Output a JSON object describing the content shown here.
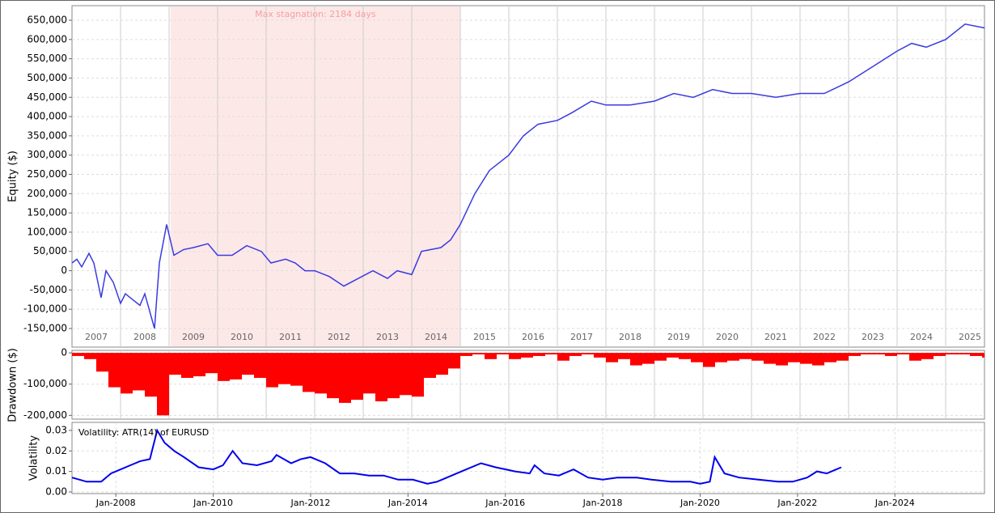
{
  "chart_data": [
    {
      "type": "line",
      "ylabel": "Equity ($)",
      "color": "#3a3ae0",
      "xlim": [
        2007,
        2025.8
      ],
      "ylim": [
        -198300,
        687800
      ],
      "year_labels": [
        2007,
        2008,
        2009,
        2010,
        2011,
        2012,
        2013,
        2014,
        2015,
        2016,
        2017,
        2018,
        2019,
        2020,
        2021,
        2022,
        2023,
        2024,
        2025
      ],
      "yticks": [
        {
          "value": 650000,
          "label": "650,000"
        },
        {
          "value": 600000,
          "label": "600,000"
        },
        {
          "value": 550000,
          "label": "550,000"
        },
        {
          "value": 500000,
          "label": "500,000"
        },
        {
          "value": 450000,
          "label": "450,000"
        },
        {
          "value": 400000,
          "label": "400,000"
        },
        {
          "value": 350000,
          "label": "350,000"
        },
        {
          "value": 300000,
          "label": "300,000"
        },
        {
          "value": 250000,
          "label": "250,000"
        },
        {
          "value": 200000,
          "label": "200,000"
        },
        {
          "value": 150000,
          "label": "150,000"
        },
        {
          "value": 100000,
          "label": "100,000"
        },
        {
          "value": 50000,
          "label": "50,000"
        },
        0,
        {
          "value": -50000,
          "label": "-50,000"
        },
        {
          "value": -100000,
          "label": "-100,000"
        },
        {
          "value": -150000,
          "label": "-150,000"
        }
      ],
      "grid": true,
      "stagnation": {
        "start": 2009.03,
        "end": 2015.0,
        "label": "Max stagnation: 2184 days",
        "color": "#fde8e8"
      },
      "x": [
        2007.0,
        2007.1,
        2007.2,
        2007.35,
        2007.45,
        2007.6,
        2007.7,
        2007.85,
        2008.0,
        2008.1,
        2008.25,
        2008.4,
        2008.5,
        2008.7,
        2008.8,
        2008.95,
        2009.1,
        2009.3,
        2009.5,
        2009.8,
        2010.0,
        2010.3,
        2010.6,
        2010.9,
        2011.1,
        2011.4,
        2011.6,
        2011.8,
        2012.0,
        2012.3,
        2012.6,
        2012.9,
        2013.2,
        2013.5,
        2013.7,
        2014.0,
        2014.2,
        2014.6,
        2014.8,
        2015.0,
        2015.3,
        2015.6,
        2016.0,
        2016.3,
        2016.6,
        2017.0,
        2017.3,
        2017.7,
        2018.0,
        2018.5,
        2019.0,
        2019.4,
        2019.8,
        2020.2,
        2020.6,
        2021.0,
        2021.5,
        2022.0,
        2022.5,
        2023.0,
        2023.5,
        2024.0,
        2024.3,
        2024.6,
        2025.0,
        2025.4,
        2025.8
      ],
      "values": [
        20000,
        30000,
        10000,
        45000,
        20000,
        -70000,
        0,
        -30000,
        -85000,
        -60000,
        -75000,
        -90000,
        -60000,
        -150000,
        20000,
        120000,
        40000,
        55000,
        60000,
        70000,
        40000,
        40000,
        65000,
        50000,
        20000,
        30000,
        20000,
        0,
        0,
        -15000,
        -40000,
        -20000,
        0,
        -20000,
        0,
        -10000,
        50000,
        60000,
        80000,
        120000,
        200000,
        260000,
        300000,
        350000,
        380000,
        390000,
        410000,
        440000,
        430000,
        430000,
        440000,
        460000,
        450000,
        470000,
        460000,
        460000,
        450000,
        460000,
        460000,
        490000,
        530000,
        570000,
        590000,
        580000,
        600000,
        640000,
        630000
      ]
    },
    {
      "type": "bar",
      "ylabel": "Drawdown ($)",
      "color": "#ff0000",
      "xlim": [
        2007,
        2025.8
      ],
      "ylim": [
        -212000,
        8000
      ],
      "yticks": [
        0,
        {
          "value": -100000,
          "label": "-100,000"
        },
        {
          "value": -200000,
          "label": "-200,000"
        }
      ],
      "grid": true,
      "x": [
        2007.0,
        2007.25,
        2007.5,
        2007.75,
        2008.0,
        2008.25,
        2008.5,
        2008.75,
        2009.0,
        2009.25,
        2009.5,
        2009.75,
        2010.0,
        2010.25,
        2010.5,
        2010.75,
        2011.0,
        2011.25,
        2011.5,
        2011.75,
        2012.0,
        2012.25,
        2012.5,
        2012.75,
        2013.0,
        2013.25,
        2013.5,
        2013.75,
        2014.0,
        2014.25,
        2014.5,
        2014.75,
        2015.0,
        2015.25,
        2015.5,
        2015.75,
        2016.0,
        2016.25,
        2016.5,
        2016.75,
        2017.0,
        2017.25,
        2017.5,
        2017.75,
        2018.0,
        2018.25,
        2018.5,
        2018.75,
        2019.0,
        2019.25,
        2019.5,
        2019.75,
        2020.0,
        2020.25,
        2020.5,
        2020.75,
        2021.0,
        2021.25,
        2021.5,
        2021.75,
        2022.0,
        2022.25,
        2022.5,
        2022.75,
        2023.0,
        2023.25,
        2023.5,
        2023.75,
        2024.0,
        2024.25,
        2024.5,
        2024.75,
        2025.0,
        2025.25,
        2025.5,
        2025.75
      ],
      "values": [
        -10000,
        -20000,
        -60000,
        -110000,
        -130000,
        -120000,
        -140000,
        -200000,
        -70000,
        -80000,
        -75000,
        -65000,
        -90000,
        -85000,
        -70000,
        -80000,
        -110000,
        -100000,
        -105000,
        -125000,
        -130000,
        -145000,
        -160000,
        -150000,
        -130000,
        -155000,
        -145000,
        -135000,
        -140000,
        -80000,
        -70000,
        -50000,
        -10000,
        -5000,
        -20000,
        -5000,
        -20000,
        -15000,
        -10000,
        -5000,
        -25000,
        -10000,
        -5000,
        -15000,
        -30000,
        -20000,
        -40000,
        -35000,
        -25000,
        -15000,
        -20000,
        -30000,
        -45000,
        -30000,
        -25000,
        -20000,
        -25000,
        -35000,
        -40000,
        -30000,
        -35000,
        -40000,
        -30000,
        -25000,
        -10000,
        -5000,
        -5000,
        -10000,
        -5000,
        -25000,
        -20000,
        -10000,
        -5000,
        -5000,
        -10000,
        -15000
      ]
    },
    {
      "type": "line",
      "ylabel": "Volatility",
      "legend": "Volatility: ATR(14) of EURUSD",
      "color": "#0000ee",
      "xlim": [
        2007.1,
        2025.84
      ],
      "ylim": [
        -0.0008,
        0.0339
      ],
      "yticks": [
        0.03,
        0.02,
        0.01,
        {
          "value": 0,
          "label": "0.00"
        }
      ],
      "xticks": [
        {
          "value": 2008,
          "label": "Jan-2008"
        },
        {
          "value": 2010,
          "label": "Jan-2010"
        },
        {
          "value": 2012,
          "label": "Jan-2012"
        },
        {
          "value": 2014,
          "label": "Jan-2014"
        },
        {
          "value": 2016,
          "label": "Jan-2016"
        },
        {
          "value": 2018,
          "label": "Jan-2018"
        },
        {
          "value": 2020,
          "label": "Jan-2020"
        },
        {
          "value": 2022,
          "label": "Jan-2022"
        },
        {
          "value": 2024,
          "label": "Jan-2024"
        }
      ],
      "grid": true,
      "x": [
        2007.1,
        2007.4,
        2007.7,
        2007.9,
        2008.1,
        2008.3,
        2008.5,
        2008.7,
        2008.85,
        2009.0,
        2009.2,
        2009.4,
        2009.7,
        2010.0,
        2010.2,
        2010.4,
        2010.6,
        2010.9,
        2011.2,
        2011.3,
        2011.6,
        2011.8,
        2012.0,
        2012.3,
        2012.6,
        2012.9,
        2013.2,
        2013.5,
        2013.8,
        2014.1,
        2014.4,
        2014.6,
        2014.8,
        2015.1,
        2015.5,
        2015.8,
        2016.2,
        2016.5,
        2016.6,
        2016.8,
        2017.1,
        2017.4,
        2017.7,
        2018.0,
        2018.3,
        2018.7,
        2019.0,
        2019.4,
        2019.8,
        2020.0,
        2020.2,
        2020.3,
        2020.5,
        2020.8,
        2021.2,
        2021.6,
        2021.9,
        2022.2,
        2022.4,
        2022.6,
        2022.9
      ],
      "values": [
        0.007,
        0.005,
        0.005,
        0.009,
        0.011,
        0.013,
        0.015,
        0.016,
        0.03,
        0.024,
        0.02,
        0.017,
        0.012,
        0.011,
        0.013,
        0.02,
        0.014,
        0.013,
        0.015,
        0.018,
        0.014,
        0.016,
        0.017,
        0.014,
        0.009,
        0.009,
        0.008,
        0.008,
        0.006,
        0.006,
        0.004,
        0.005,
        0.007,
        0.01,
        0.014,
        0.012,
        0.01,
        0.009,
        0.013,
        0.009,
        0.008,
        0.011,
        0.007,
        0.006,
        0.007,
        0.007,
        0.006,
        0.005,
        0.005,
        0.004,
        0.005,
        0.017,
        0.009,
        0.007,
        0.006,
        0.005,
        0.005,
        0.007,
        0.01,
        0.009,
        0.012
      ]
    }
  ]
}
